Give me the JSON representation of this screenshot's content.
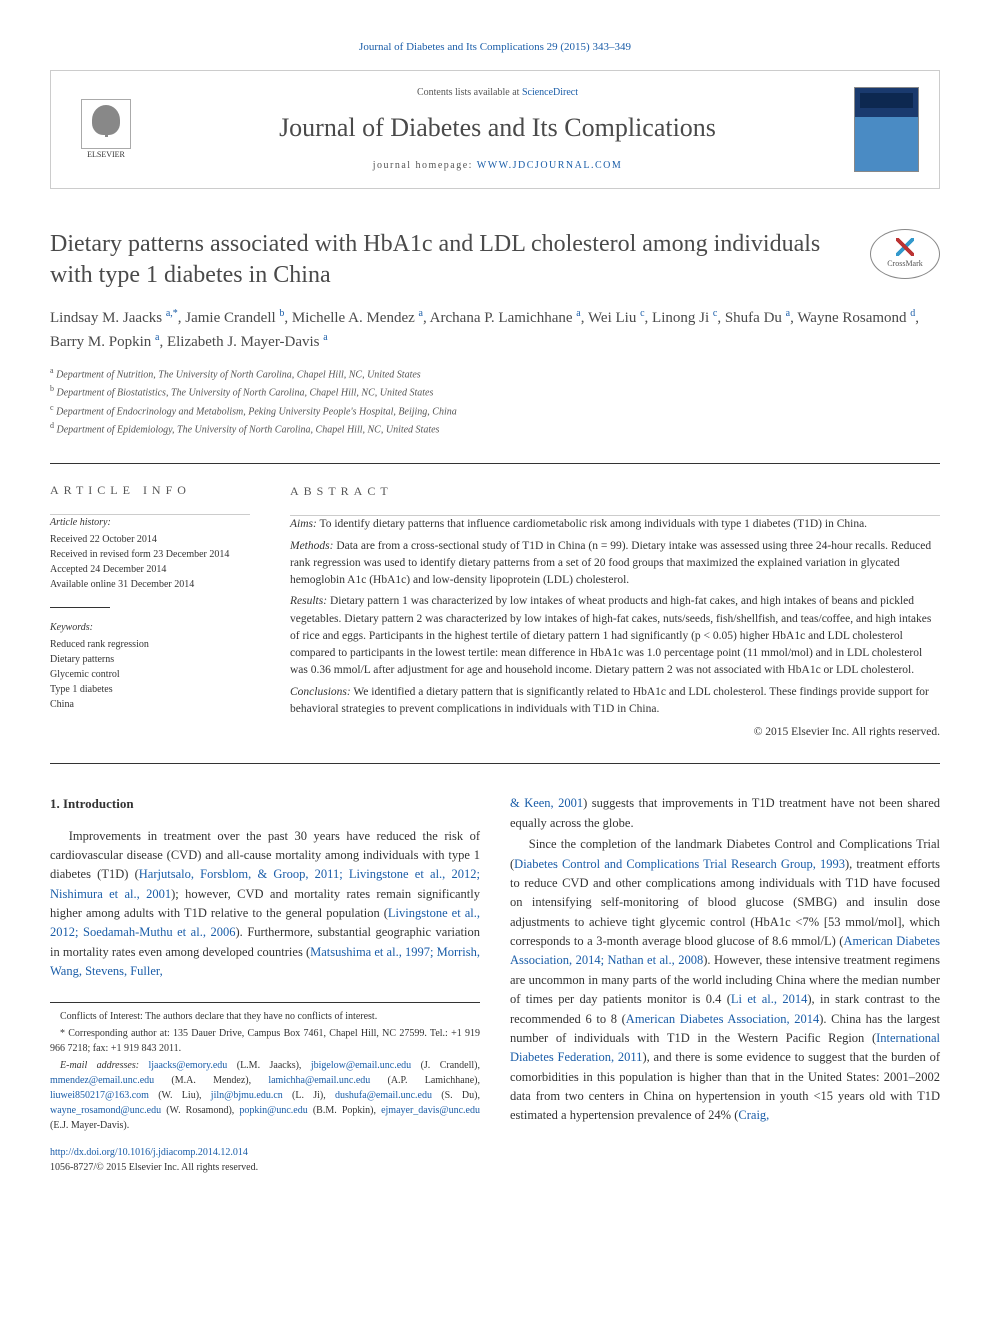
{
  "header": {
    "citation_link": "Journal of Diabetes and Its Complications 29 (2015) 343–349",
    "contents_prefix": "Contents lists available at ",
    "contents_link": "ScienceDirect",
    "journal_name": "Journal of Diabetes and Its Complications",
    "homepage_prefix": "journal homepage: ",
    "homepage_url": "WWW.JDCJOURNAL.COM",
    "publisher": "ELSEVIER",
    "crossmark": "CrossMark"
  },
  "title": "Dietary patterns associated with HbA1c and LDL cholesterol among individuals with type 1 diabetes in China",
  "authors_html": "Lindsay M. Jaacks <sup>a,*</sup>, Jamie Crandell <sup>b</sup>, Michelle A. Mendez <sup>a</sup>, Archana P. Lamichhane <sup>a</sup>, Wei Liu <sup>c</sup>, Linong Ji <sup>c</sup>, Shufa Du <sup>a</sup>, Wayne Rosamond <sup>d</sup>, Barry M. Popkin <sup>a</sup>, Elizabeth J. Mayer-Davis <sup>a</sup>",
  "affiliations": [
    {
      "sup": "a",
      "text": "Department of Nutrition, The University of North Carolina, Chapel Hill, NC, United States"
    },
    {
      "sup": "b",
      "text": "Department of Biostatistics, The University of North Carolina, Chapel Hill, NC, United States"
    },
    {
      "sup": "c",
      "text": "Department of Endocrinology and Metabolism, Peking University People's Hospital, Beijing, China"
    },
    {
      "sup": "d",
      "text": "Department of Epidemiology, The University of North Carolina, Chapel Hill, NC, United States"
    }
  ],
  "article_info": {
    "label": "article info",
    "history_head": "Article history:",
    "history": [
      "Received 22 October 2014",
      "Received in revised form 23 December 2014",
      "Accepted 24 December 2014",
      "Available online 31 December 2014"
    ],
    "keywords_head": "Keywords:",
    "keywords": [
      "Reduced rank regression",
      "Dietary patterns",
      "Glycemic control",
      "Type 1 diabetes",
      "China"
    ]
  },
  "abstract": {
    "label": "abstract",
    "aims_label": "Aims:",
    "aims": "To identify dietary patterns that influence cardiometabolic risk among individuals with type 1 diabetes (T1D) in China.",
    "methods_label": "Methods:",
    "methods": "Data are from a cross-sectional study of T1D in China (n = 99). Dietary intake was assessed using three 24-hour recalls. Reduced rank regression was used to identify dietary patterns from a set of 20 food groups that maximized the explained variation in glycated hemoglobin A1c (HbA1c) and low-density lipoprotein (LDL) cholesterol.",
    "results_label": "Results:",
    "results": "Dietary pattern 1 was characterized by low intakes of wheat products and high-fat cakes, and high intakes of beans and pickled vegetables. Dietary pattern 2 was characterized by low intakes of high-fat cakes, nuts/seeds, fish/shellfish, and teas/coffee, and high intakes of rice and eggs. Participants in the highest tertile of dietary pattern 1 had significantly (p < 0.05) higher HbA1c and LDL cholesterol compared to participants in the lowest tertile: mean difference in HbA1c was 1.0 percentage point (11 mmol/mol) and in LDL cholesterol was 0.36 mmol/L after adjustment for age and household income. Dietary pattern 2 was not associated with HbA1c or LDL cholesterol.",
    "conclusions_label": "Conclusions:",
    "conclusions": "We identified a dietary pattern that is significantly related to HbA1c and LDL cholesterol. These findings provide support for behavioral strategies to prevent complications in individuals with T1D in China.",
    "copyright": "© 2015 Elsevier Inc. All rights reserved."
  },
  "body": {
    "heading": "1. Introduction",
    "col1_p1_pre": "Improvements in treatment over the past 30 years have reduced the risk of cardiovascular disease (CVD) and all-cause mortality among individuals with type 1 diabetes (T1D) (",
    "col1_ref1": "Harjutsalo, Forsblom, & Groop, 2011; Livingstone et al., 2012; Nishimura et al., 2001",
    "col1_p1_mid1": "); however, CVD and mortality rates remain significantly higher among adults with T1D relative to the general population (",
    "col1_ref2": "Livingstone et al., 2012; Soedamah-Muthu et al., 2006",
    "col1_p1_mid2": "). Furthermore, substantial geographic variation in mortality rates even among developed countries (",
    "col1_ref3": "Matsushima et al., 1997; Morrish, Wang, Stevens, Fuller,",
    "col2_ref3b": "& Keen, 2001",
    "col2_p1_tail": ") suggests that improvements in T1D treatment have not been shared equally across the globe.",
    "col2_p2_pre": "Since the completion of the landmark Diabetes Control and Complications Trial (",
    "col2_ref4": "Diabetes Control and Complications Trial Research Group, 1993",
    "col2_p2_mid1": "), treatment efforts to reduce CVD and other complications among individuals with T1D have focused on intensifying self-monitoring of blood glucose (SMBG) and insulin dose adjustments to achieve tight glycemic control (HbA1c <7% [53 mmol/mol], which corresponds to a 3-month average blood glucose of 8.6 mmol/L) (",
    "col2_ref5": "American Diabetes Association, 2014; Nathan et al., 2008",
    "col2_p2_mid2": "). However, these intensive treatment regimens are uncommon in many parts of the world including China where the median number of times per day patients monitor is 0.4 (",
    "col2_ref6": "Li et al., 2014",
    "col2_p2_mid3": "), in stark contrast to the recommended 6 to 8 (",
    "col2_ref7": "American Diabetes Association, 2014",
    "col2_p2_mid4": "). China has the largest number of individuals with T1D in the Western Pacific Region (",
    "col2_ref8": "International Diabetes Federation, 2011",
    "col2_p2_mid5": "), and there is some evidence to suggest that the burden of comorbidities in this population is higher than that in the United States: 2001–2002 data from two centers in China on hypertension in youth <15 years old with T1D estimated a hypertension prevalence of 24% (",
    "col2_ref9": "Craig,"
  },
  "footnotes": {
    "conflicts": "Conflicts of Interest: The authors declare that they have no conflicts of interest.",
    "corresponding_prefix": "* Corresponding author at: 135 Dauer Drive, Campus Box 7461, Chapel Hill, NC 27599. Tel.: +1 919 966 7218; fax: +1 919 843 2011.",
    "emails_label": "E-mail addresses:",
    "emails": [
      {
        "addr": "ljaacks@emory.edu",
        "who": "(L.M. Jaacks)"
      },
      {
        "addr": "jbigelow@email.unc.edu",
        "who": "(J. Crandell)"
      },
      {
        "addr": "mmendez@email.unc.edu",
        "who": "(M.A. Mendez)"
      },
      {
        "addr": "lamichha@email.unc.edu",
        "who": "(A.P. Lamichhane)"
      },
      {
        "addr": "liuwei850217@163.com",
        "who": "(W. Liu)"
      },
      {
        "addr": "jiln@bjmu.edu.cn",
        "who": "(L. Ji)"
      },
      {
        "addr": "dushufa@email.unc.edu",
        "who": "(S. Du)"
      },
      {
        "addr": "wayne_rosamond@unc.edu",
        "who": "(W. Rosamond)"
      },
      {
        "addr": "popkin@unc.edu",
        "who": "(B.M. Popkin)"
      },
      {
        "addr": "ejmayer_davis@unc.edu",
        "who": "(E.J. Mayer-Davis)"
      }
    ],
    "doi": "http://dx.doi.org/10.1016/j.jdiacomp.2014.12.014",
    "issn": "1056-8727/© 2015 Elsevier Inc. All rights reserved."
  },
  "colors": {
    "link": "#1a5da8",
    "text": "#333333",
    "muted": "#555555",
    "border": "#333333"
  }
}
